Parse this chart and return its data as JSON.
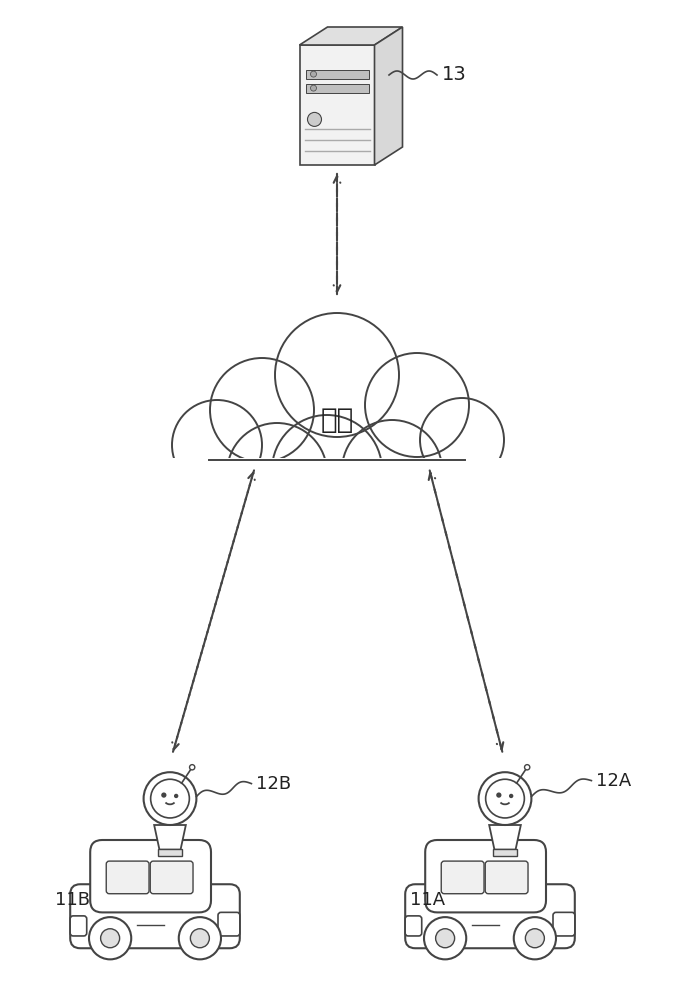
{
  "bg_color": "#ffffff",
  "line_color": "#444444",
  "text_color": "#222222",
  "cloud_label": "网络",
  "server_label": "13",
  "car_left_label": "11B",
  "car_right_label": "11A",
  "cam_left_label": "12B",
  "cam_right_label": "12A",
  "figsize": [
    6.74,
    10.0
  ],
  "dpi": 100
}
